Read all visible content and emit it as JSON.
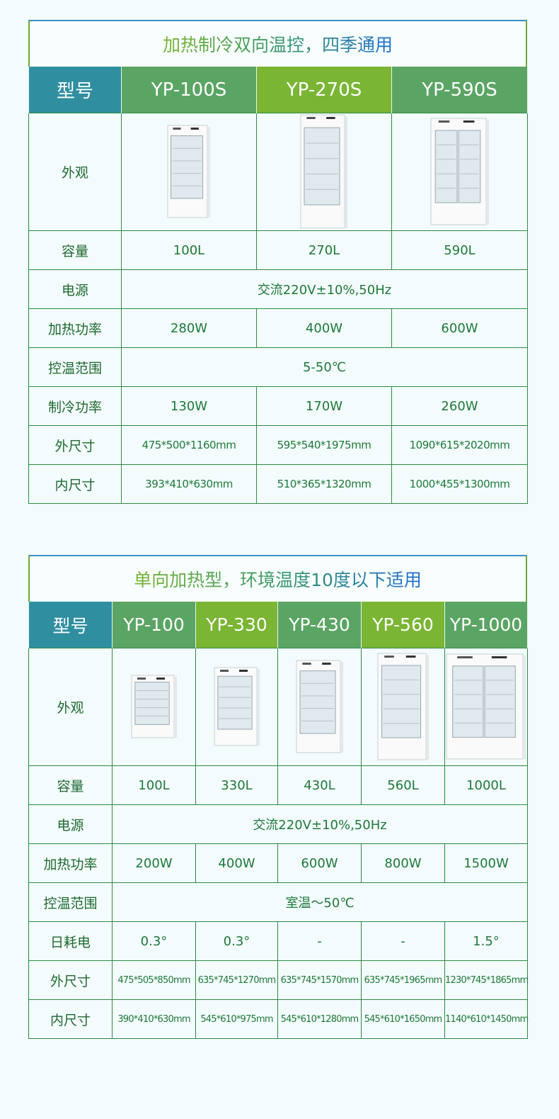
{
  "table1": {
    "title": "加热制冷双向温控，四季通用",
    "header": [
      "型号",
      "YP-100S",
      "YP-270S",
      "YP-590S"
    ],
    "header_colors": [
      "#2f8fa0",
      "#5ba564",
      "#7ab534",
      "#5ba564"
    ],
    "appearance_label": "外观",
    "rows": [
      {
        "label": "容量",
        "values": [
          "100L",
          "270L",
          "590L"
        ]
      },
      {
        "label": "电源",
        "span": "交流220V±10%,50Hz"
      },
      {
        "label": "加热功率",
        "values": [
          "280W",
          "400W",
          "600W"
        ]
      },
      {
        "label": "控温范围",
        "span": "5-50℃"
      },
      {
        "label": "制冷功率",
        "values": [
          "130W",
          "170W",
          "260W"
        ]
      },
      {
        "label": "外尺寸",
        "values": [
          "475*500*1160mm",
          "595*540*1975mm",
          "1090*615*2020mm"
        ]
      },
      {
        "label": "内尺寸",
        "values": [
          "393*410*630mm",
          "510*365*1320mm",
          "1000*455*1300mm"
        ]
      }
    ]
  },
  "table2": {
    "title": "单向加热型，环境温度10度以下适用",
    "header": [
      "型号",
      "YP-100",
      "YP-330",
      "YP-430",
      "YP-560",
      "YP-1000"
    ],
    "header_colors": [
      "#2f8fa0",
      "#5ba564",
      "#7ab534",
      "#5ba564",
      "#7ab534",
      "#5ba564"
    ],
    "appearance_label": "外观",
    "rows": [
      {
        "label": "容量",
        "values": [
          "100L",
          "330L",
          "430L",
          "560L",
          "1000L"
        ]
      },
      {
        "label": "电源",
        "span": "交流220V±10%,50Hz"
      },
      {
        "label": "加热功率",
        "values": [
          "200W",
          "400W",
          "600W",
          "800W",
          "1500W"
        ]
      },
      {
        "label": "控温范围",
        "span": "室温～50℃"
      },
      {
        "label": "日耗电",
        "values": [
          "0.3°",
          "0.3°",
          "-",
          "-",
          "1.5°"
        ]
      },
      {
        "label": "外尺寸",
        "values": [
          "475*505*850mm",
          "635*745*1270mm",
          "635*745*1570mm",
          "635*745*1965mm",
          "1230*745*1865mm"
        ]
      },
      {
        "label": "内尺寸",
        "values": [
          "390*410*630mm",
          "545*610*975mm",
          "545*610*1280mm",
          "545*610*1650mm",
          "1140*610*1450mm"
        ]
      }
    ]
  }
}
